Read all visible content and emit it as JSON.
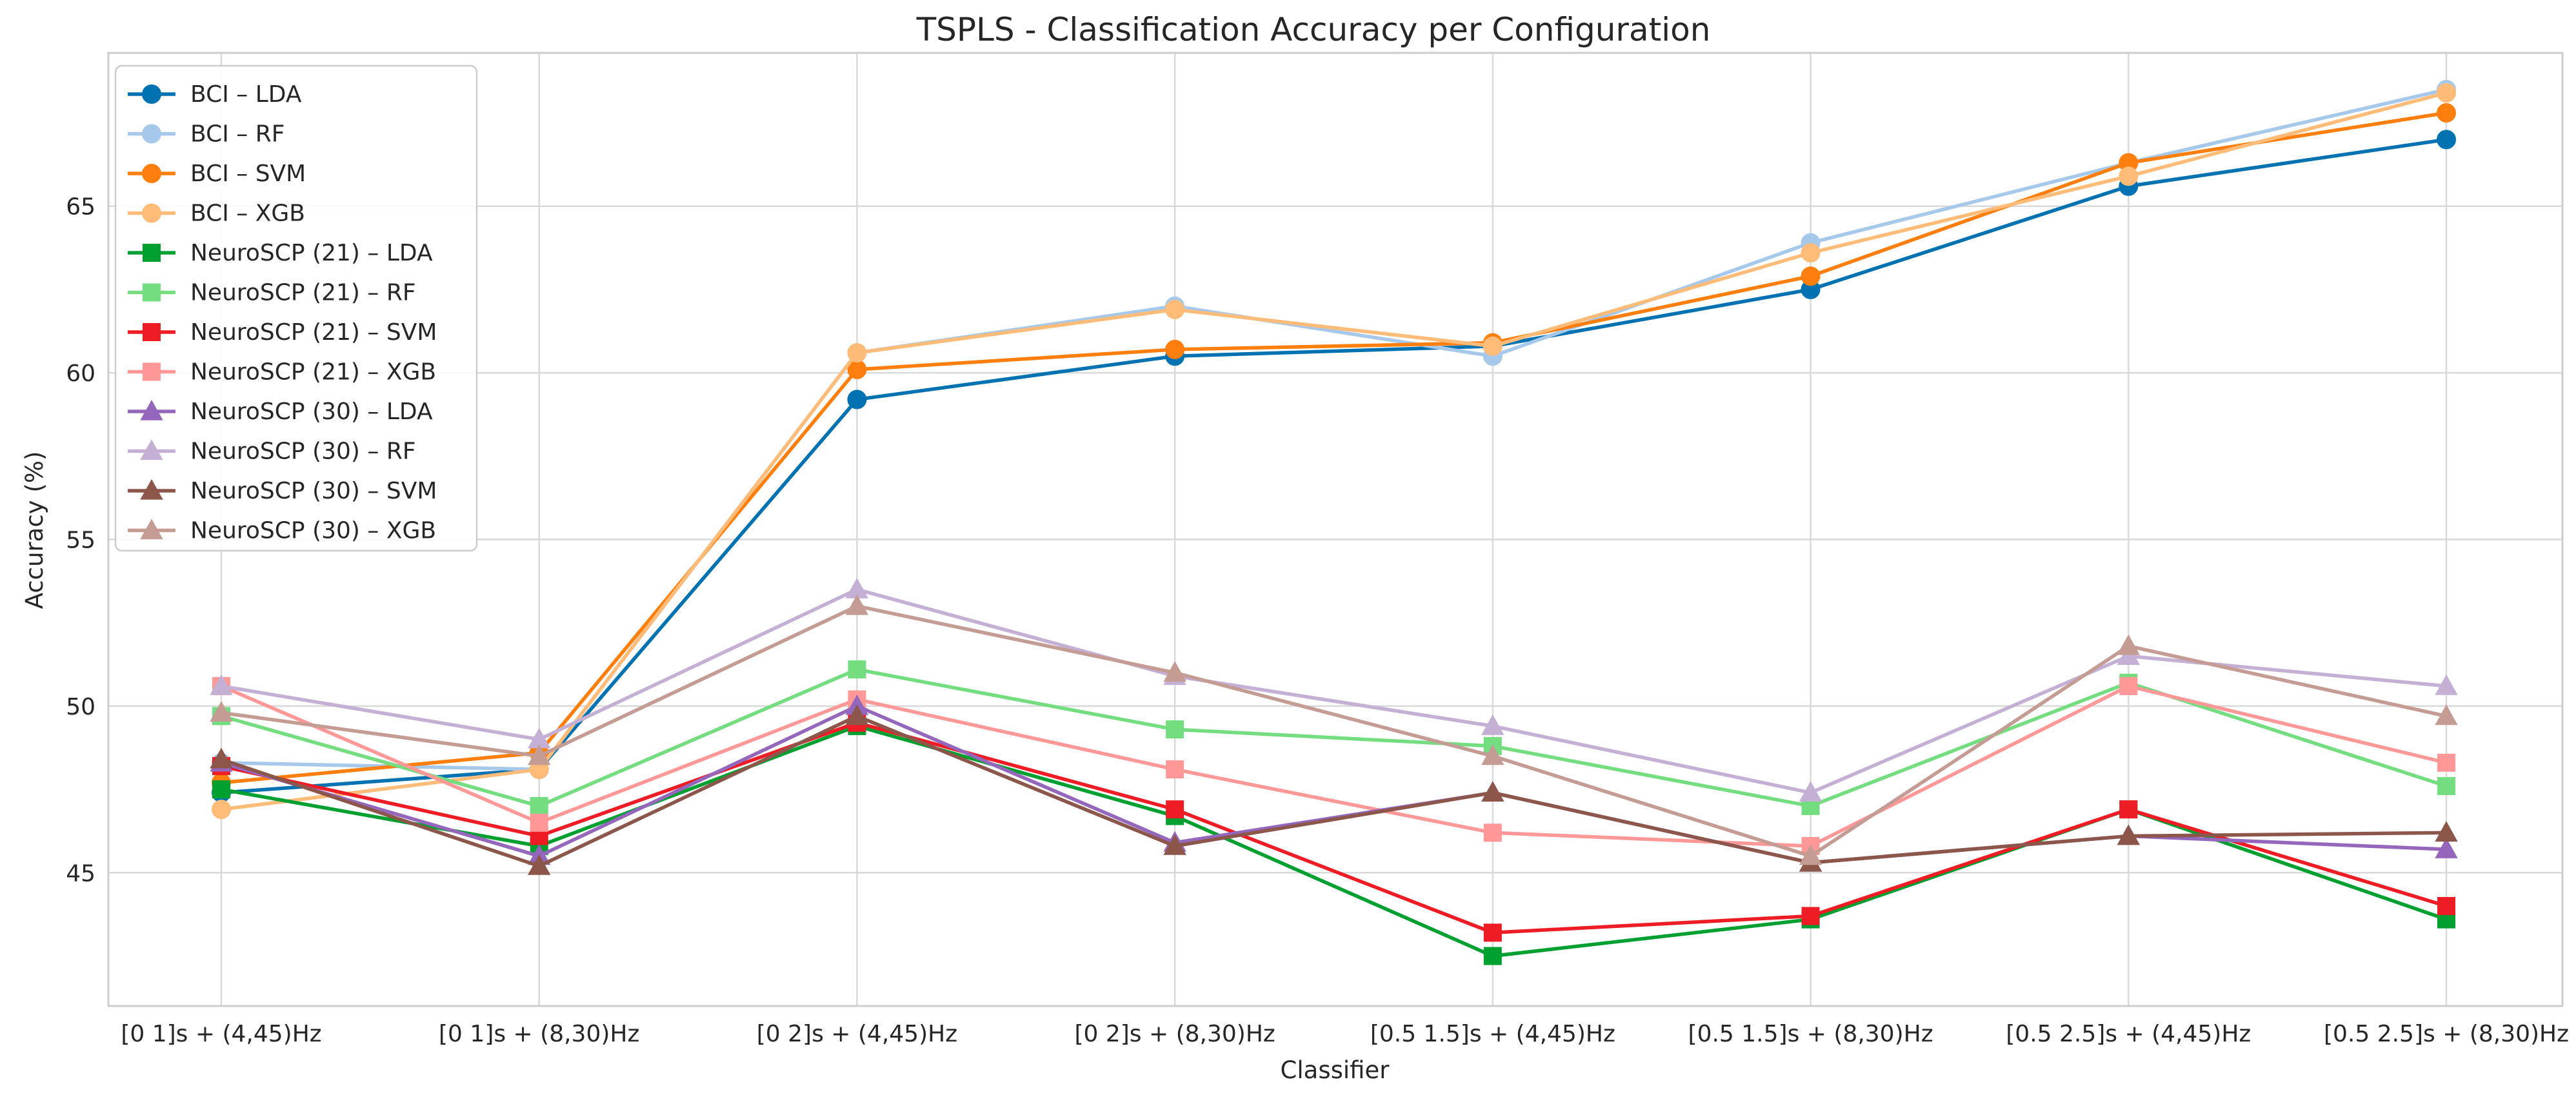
{
  "chart_data": {
    "type": "line",
    "title": "TSPLS - Classification Accuracy per Configuration",
    "xlabel": "Classifier",
    "ylabel": "Accuracy (%)",
    "ylim": [
      41.0,
      69.6
    ],
    "yticks": [
      45,
      50,
      55,
      60,
      65
    ],
    "grid": true,
    "legend_position": "upper-left",
    "categories": [
      "[0 1]s + (4,45)Hz",
      "[0 1]s + (8,30)Hz",
      "[0 2]s + (4,45)Hz",
      "[0 2]s + (8,30)Hz",
      "[0.5 1.5]s + (4,45)Hz",
      "[0.5 1.5]s + (8,30)Hz",
      "[0.5 2.5]s + (4,45)Hz",
      "[0.5 2.5]s + (8,30)Hz"
    ],
    "series": [
      {
        "name": "BCI – LDA",
        "color": "#0072b2",
        "marker": "circle",
        "values": [
          47.4,
          48.1,
          59.2,
          60.5,
          60.8,
          62.5,
          65.6,
          67.0
        ]
      },
      {
        "name": "BCI – RF",
        "color": "#a6c8ea",
        "marker": "circle",
        "values": [
          48.3,
          48.1,
          60.6,
          62.0,
          60.5,
          63.9,
          66.3,
          68.5
        ]
      },
      {
        "name": "BCI – SVM",
        "color": "#ff7f0e",
        "marker": "circle",
        "values": [
          47.7,
          48.6,
          60.1,
          60.7,
          60.9,
          62.9,
          66.3,
          67.8
        ]
      },
      {
        "name": "BCI – XGB",
        "color": "#ffbb78",
        "marker": "circle",
        "values": [
          46.9,
          48.1,
          60.6,
          61.9,
          60.8,
          63.6,
          65.9,
          68.4
        ]
      },
      {
        "name": "NeuroSCP (21) – LDA",
        "color": "#00a030",
        "marker": "square",
        "values": [
          47.5,
          45.8,
          49.4,
          46.7,
          42.5,
          43.6,
          46.9,
          43.6
        ]
      },
      {
        "name": "NeuroSCP (21) – RF",
        "color": "#74dd80",
        "marker": "square",
        "values": [
          49.7,
          47.0,
          51.1,
          49.3,
          48.8,
          47.0,
          50.7,
          47.6
        ]
      },
      {
        "name": "NeuroSCP (21) – SVM",
        "color": "#ee1c25",
        "marker": "square",
        "values": [
          48.2,
          46.1,
          49.5,
          46.9,
          43.2,
          43.7,
          46.9,
          44.0
        ]
      },
      {
        "name": "NeuroSCP (21) – XGB",
        "color": "#ff9896",
        "marker": "square",
        "values": [
          50.6,
          46.5,
          50.2,
          48.1,
          46.2,
          45.8,
          50.6,
          48.3
        ]
      },
      {
        "name": "NeuroSCP (30) – LDA",
        "color": "#9467bd",
        "marker": "triangle",
        "values": [
          48.3,
          45.5,
          50.0,
          45.9,
          47.4,
          45.3,
          46.1,
          45.7
        ]
      },
      {
        "name": "NeuroSCP (30) – RF",
        "color": "#c5b0d5",
        "marker": "triangle",
        "values": [
          50.6,
          49.0,
          53.5,
          50.9,
          49.4,
          47.4,
          51.5,
          50.6
        ]
      },
      {
        "name": "NeuroSCP (30) – SVM",
        "color": "#8c564b",
        "marker": "triangle",
        "values": [
          48.4,
          45.2,
          49.7,
          45.8,
          47.4,
          45.3,
          46.1,
          46.2
        ]
      },
      {
        "name": "NeuroSCP (30) – XGB",
        "color": "#c49c94",
        "marker": "triangle",
        "values": [
          49.8,
          48.5,
          53.0,
          51.0,
          48.5,
          45.5,
          51.8,
          49.7
        ]
      }
    ]
  }
}
